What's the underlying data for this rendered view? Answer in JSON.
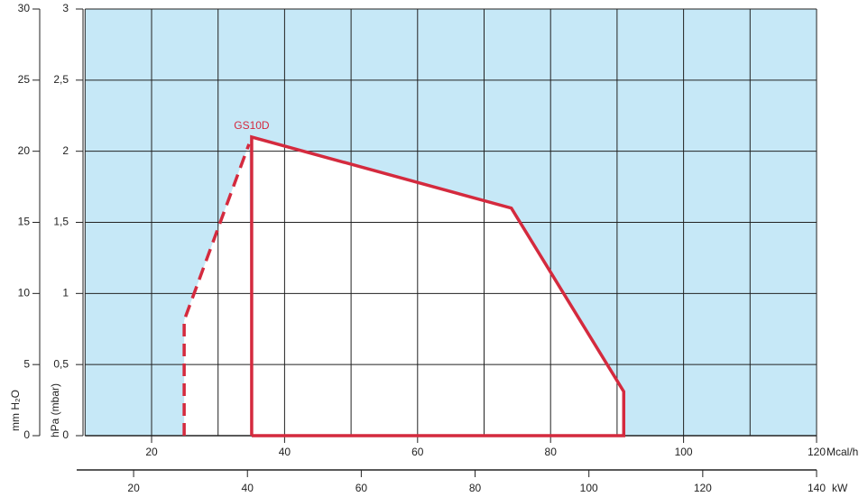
{
  "chart_data": {
    "type": "line",
    "series_label": "GS10D",
    "x_label": "Mcal/h",
    "x2_label": "kW",
    "y_label": "hPa (mbar)",
    "y2_label": "mm H₂O",
    "xlim": [
      10,
      120
    ],
    "xticks": [
      20,
      40,
      60,
      80,
      100,
      120
    ],
    "xgrid": [
      10,
      20,
      30,
      40,
      50,
      60,
      70,
      80,
      90,
      100,
      110,
      120
    ],
    "x2lim": [
      10,
      140
    ],
    "x2ticks": [
      20,
      40,
      60,
      80,
      100,
      120,
      140
    ],
    "ylim": [
      0,
      3
    ],
    "yticks": [
      0,
      {
        "value": 0.5,
        "label": "0,5"
      },
      1,
      {
        "value": 1.5,
        "label": "1,5"
      },
      2,
      {
        "value": 2.5,
        "label": "2,5"
      },
      3
    ],
    "y2lim": [
      0,
      30
    ],
    "y2ticks": [
      0,
      5,
      10,
      15,
      20,
      25,
      30
    ],
    "grid": true,
    "background": "#c6e8f7",
    "inside": "#ffffff",
    "series": [
      {
        "name": "GS10D",
        "color": "#d42a3e",
        "dashed": false,
        "x": [
          35.05,
          35.05,
          74.1,
          91.0,
          91.0,
          35.05
        ],
        "values": [
          0,
          2.1,
          1.6,
          0.31,
          0,
          0
        ]
      },
      {
        "color": "#d42a3e",
        "dashed": true,
        "x": [
          24.9,
          24.9,
          34.65
        ],
        "values": [
          0,
          0.81,
          2.05
        ]
      }
    ]
  }
}
